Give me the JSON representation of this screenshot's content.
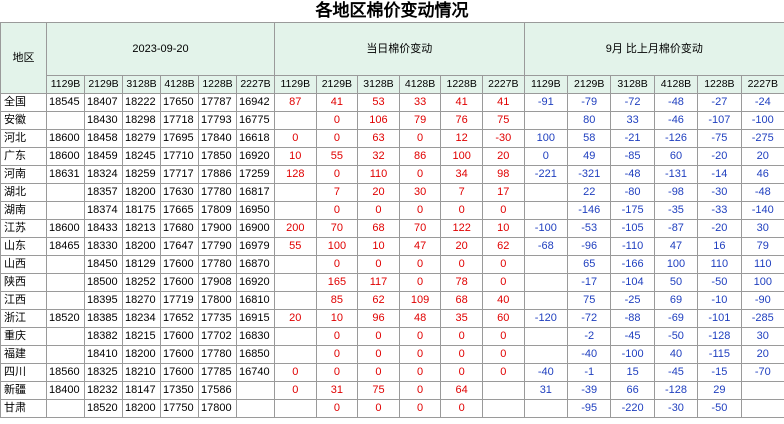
{
  "title": "各地区棉价变动情况",
  "header": {
    "region": "地区",
    "date": "2023-09-20",
    "daily": "当日棉价变动",
    "monthly": "9月 比上月棉价变动",
    "columns": [
      "1129B",
      "2129B",
      "3128B",
      "4128B",
      "1228B",
      "2227B"
    ]
  },
  "rows": [
    {
      "region": "全国",
      "price": [
        18545,
        18407,
        18222,
        17650,
        17787,
        16942
      ],
      "daily": [
        87,
        41,
        53,
        33,
        41,
        41
      ],
      "monthly": [
        -91,
        -79,
        -72,
        -48,
        -27,
        -24
      ]
    },
    {
      "region": "安徽",
      "price": [
        null,
        18430,
        18298,
        17718,
        17793,
        16775
      ],
      "daily": [
        null,
        0,
        106,
        79,
        76,
        75
      ],
      "monthly": [
        null,
        80,
        33,
        -46,
        -107,
        -100
      ]
    },
    {
      "region": "河北",
      "price": [
        18600,
        18458,
        18279,
        17695,
        17840,
        16618
      ],
      "daily": [
        0,
        0,
        63,
        0,
        12,
        -30
      ],
      "monthly": [
        100,
        58,
        -21,
        -126,
        -75,
        -275
      ]
    },
    {
      "region": "广东",
      "price": [
        18600,
        18459,
        18245,
        17710,
        17850,
        16920
      ],
      "daily": [
        10,
        55,
        32,
        86,
        100,
        20
      ],
      "monthly": [
        0,
        49,
        -85,
        60,
        -20,
        20
      ]
    },
    {
      "region": "河南",
      "price": [
        18631,
        18324,
        18259,
        17717,
        17886,
        17259
      ],
      "daily": [
        128,
        0,
        110,
        0,
        34,
        98
      ],
      "monthly": [
        -221,
        -321,
        -48,
        -131,
        -14,
        46
      ]
    },
    {
      "region": "湖北",
      "price": [
        null,
        18357,
        18200,
        17630,
        17780,
        16817
      ],
      "daily": [
        null,
        7,
        20,
        30,
        7,
        17
      ],
      "monthly": [
        null,
        22,
        -80,
        -98,
        -30,
        -48
      ]
    },
    {
      "region": "湖南",
      "price": [
        null,
        18374,
        18175,
        17665,
        17809,
        16950
      ],
      "daily": [
        null,
        0,
        0,
        0,
        0,
        0
      ],
      "monthly": [
        null,
        -146,
        -175,
        -35,
        -33,
        -140
      ]
    },
    {
      "region": "江苏",
      "price": [
        18600,
        18433,
        18213,
        17680,
        17900,
        16900
      ],
      "daily": [
        200,
        70,
        68,
        70,
        122,
        10
      ],
      "monthly": [
        -100,
        -53,
        -105,
        -87,
        -20,
        30
      ]
    },
    {
      "region": "山东",
      "price": [
        18465,
        18330,
        18200,
        17647,
        17790,
        16979
      ],
      "daily": [
        55,
        100,
        10,
        47,
        20,
        62
      ],
      "monthly": [
        -68,
        -96,
        -110,
        47,
        16,
        79
      ]
    },
    {
      "region": "山西",
      "price": [
        null,
        18450,
        18129,
        17600,
        17780,
        16870
      ],
      "daily": [
        null,
        0,
        0,
        0,
        0,
        0
      ],
      "monthly": [
        null,
        65,
        -166,
        100,
        110,
        110
      ]
    },
    {
      "region": "陕西",
      "price": [
        null,
        18500,
        18252,
        17600,
        17908,
        16920
      ],
      "daily": [
        null,
        165,
        117,
        0,
        78,
        0
      ],
      "monthly": [
        null,
        -17,
        -104,
        50,
        -50,
        100
      ]
    },
    {
      "region": "江西",
      "price": [
        null,
        18395,
        18270,
        17719,
        17800,
        16810
      ],
      "daily": [
        null,
        85,
        62,
        109,
        68,
        40
      ],
      "monthly": [
        null,
        75,
        -25,
        69,
        -10,
        -90
      ]
    },
    {
      "region": "浙江",
      "price": [
        18520,
        18385,
        18234,
        17652,
        17735,
        16915
      ],
      "daily": [
        20,
        10,
        96,
        48,
        35,
        60
      ],
      "monthly": [
        -120,
        -72,
        -88,
        -69,
        -101,
        -285
      ]
    },
    {
      "region": "重庆",
      "price": [
        null,
        18382,
        18215,
        17600,
        17702,
        16830
      ],
      "daily": [
        null,
        0,
        0,
        0,
        0,
        0
      ],
      "monthly": [
        null,
        -2,
        -45,
        -50,
        -128,
        30
      ]
    },
    {
      "region": "福建",
      "price": [
        null,
        18410,
        18200,
        17600,
        17780,
        16850
      ],
      "daily": [
        null,
        0,
        0,
        0,
        0,
        0
      ],
      "monthly": [
        null,
        -40,
        -100,
        40,
        -115,
        20
      ]
    },
    {
      "region": "四川",
      "price": [
        18560,
        18325,
        18210,
        17600,
        17785,
        16740
      ],
      "daily": [
        0,
        0,
        0,
        0,
        0,
        0
      ],
      "monthly": [
        -40,
        -1,
        15,
        -45,
        -15,
        -70
      ]
    },
    {
      "region": "新疆",
      "price": [
        18400,
        18232,
        18147,
        17350,
        17586,
        null
      ],
      "daily": [
        0,
        31,
        75,
        0,
        64,
        null
      ],
      "monthly": [
        31,
        -39,
        66,
        -128,
        29,
        null
      ]
    },
    {
      "region": "甘肃",
      "price": [
        null,
        18520,
        18200,
        17750,
        17800,
        null
      ],
      "daily": [
        null,
        0,
        0,
        0,
        0,
        null
      ],
      "monthly": [
        null,
        -95,
        -220,
        -30,
        -50,
        null
      ]
    }
  ]
}
